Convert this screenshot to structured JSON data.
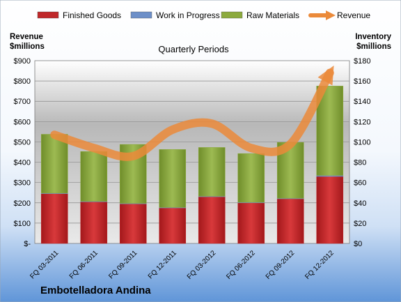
{
  "chart_data": {
    "type": "bar",
    "title": "Quarterly Periods",
    "company": "Embotelladora Andina",
    "left_axis_title": [
      "Revenue",
      "$millions"
    ],
    "right_axis_title": [
      "Inventory",
      "$millions"
    ],
    "categories": [
      "FQ 03-2011",
      "FQ 06-2011",
      "FQ 09-2011",
      "FQ 12-2011",
      "FQ 03-2012",
      "FQ 06-2012",
      "FQ 09-2012",
      "FQ 12-2012"
    ],
    "left_ticks": [
      "$-",
      "$100",
      "$200",
      "$300",
      "$400",
      "$500",
      "$600",
      "$700",
      "$800",
      "$900"
    ],
    "right_ticks": [
      "$0",
      "$20",
      "$40",
      "$60",
      "$80",
      "$100",
      "$120",
      "$140",
      "$160",
      "$180"
    ],
    "left_range": [
      0,
      900
    ],
    "right_range": [
      0,
      180
    ],
    "legend_position": "top",
    "series": [
      {
        "name": "Finished Goods",
        "kind": "bar",
        "axis": "right",
        "color": "#c0282a",
        "values": [
          49,
          41,
          39,
          35,
          46,
          40,
          44,
          66
        ]
      },
      {
        "name": "Work in Progress",
        "kind": "bar",
        "axis": "right",
        "color": "#6d8fc8",
        "values": [
          0.5,
          0.5,
          0.5,
          0.5,
          0.5,
          0.5,
          0.5,
          1
        ]
      },
      {
        "name": "Raw Materials",
        "kind": "bar",
        "axis": "right",
        "color": "#8caa3e",
        "values": [
          58,
          49,
          58,
          57,
          48,
          48,
          55,
          88
        ]
      },
      {
        "name": "Revenue",
        "kind": "line",
        "axis": "left",
        "color": "#eb8a3a",
        "values": [
          535,
          470,
          430,
          560,
          590,
          470,
          490,
          840
        ]
      }
    ]
  }
}
